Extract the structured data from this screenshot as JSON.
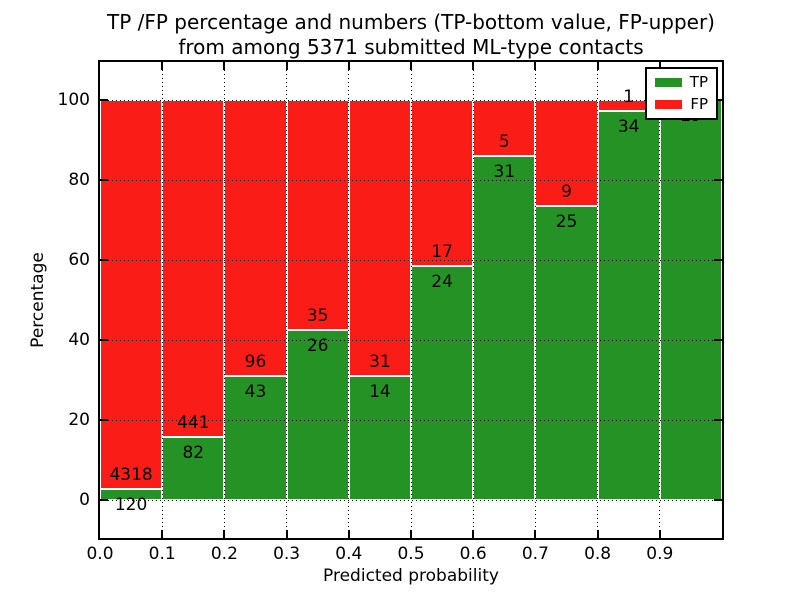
{
  "chart_data": {
    "type": "bar",
    "stacked": true,
    "normalized": "each bin scaled to 100%",
    "title_lines": [
      "TP /FP percentage and numbers (TP-bottom value, FP-upper)",
      "from among 5371 submitted ML-type contacts"
    ],
    "xlabel": "Predicted probability",
    "ylabel": "Percentage",
    "total_submitted": 5371,
    "x_tick_labels": [
      "0.0",
      "0.1",
      "0.2",
      "0.3",
      "0.4",
      "0.5",
      "0.6",
      "0.7",
      "0.8",
      "0.9"
    ],
    "y_tick_labels": [
      "0",
      "20",
      "40",
      "60",
      "80",
      "100"
    ],
    "grid": true,
    "legend_position": "upper right",
    "series": [
      {
        "name": "TP",
        "color": "#259225"
      },
      {
        "name": "FP",
        "color": "#fa1c16"
      }
    ],
    "bins": [
      {
        "x_range": [
          0.0,
          0.1
        ],
        "tp": 120,
        "fp": 4318
      },
      {
        "x_range": [
          0.1,
          0.2
        ],
        "tp": 82,
        "fp": 441
      },
      {
        "x_range": [
          0.2,
          0.3
        ],
        "tp": 43,
        "fp": 96
      },
      {
        "x_range": [
          0.3,
          0.4
        ],
        "tp": 26,
        "fp": 35
      },
      {
        "x_range": [
          0.4,
          0.5
        ],
        "tp": 14,
        "fp": 31
      },
      {
        "x_range": [
          0.5,
          0.6
        ],
        "tp": 24,
        "fp": 17
      },
      {
        "x_range": [
          0.6,
          0.7
        ],
        "tp": 31,
        "fp": 5
      },
      {
        "x_range": [
          0.7,
          0.8
        ],
        "tp": 25,
        "fp": 9
      },
      {
        "x_range": [
          0.8,
          0.9
        ],
        "tp": 34,
        "fp": 1
      },
      {
        "x_range": [
          0.9,
          1.0
        ],
        "tp": 19,
        "fp": 0
      }
    ]
  }
}
